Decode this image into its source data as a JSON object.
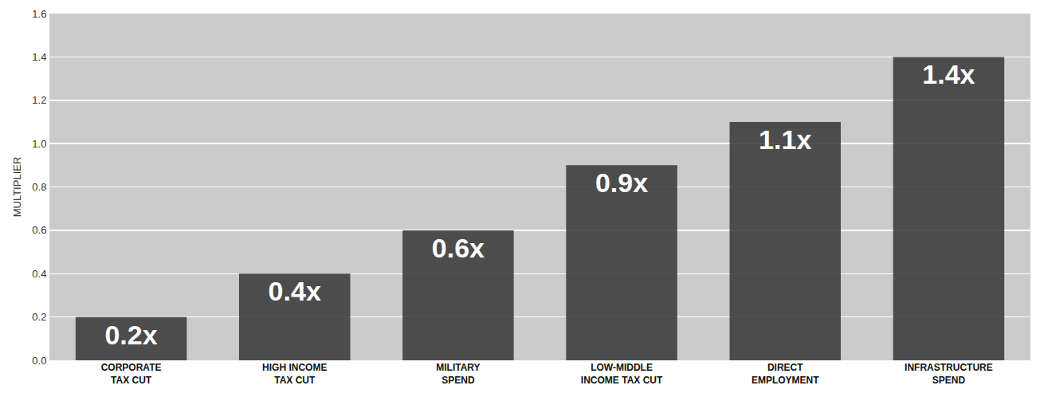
{
  "chart_data": {
    "type": "bar",
    "y_label": "MULTIPLIER",
    "categories": [
      "CORPORATE TAX CUT",
      "HIGH INCOME TAX CUT",
      "MILITARY SPEND",
      "LOW-MIDDLE INCOME TAX CUT",
      "DIRECT EMPLOYMENT",
      "INFRASTRUCTURE SPEND"
    ],
    "values": [
      0.2,
      0.4,
      0.6,
      0.9,
      1.1,
      1.4
    ],
    "value_labels": [
      "0.2x",
      "0.4x",
      "0.6x",
      "0.9x",
      "1.1x",
      "1.4x"
    ],
    "data_labels": true,
    "color": "#3a3a3a",
    "ylim": [
      0,
      1.6
    ],
    "yticks": [
      {
        "value": 0,
        "label": "0.0"
      },
      0.2,
      0.4,
      0.6,
      0.8,
      {
        "value": 1,
        "label": "1.0"
      },
      1.2,
      1.4,
      1.6
    ],
    "grid": true
  }
}
